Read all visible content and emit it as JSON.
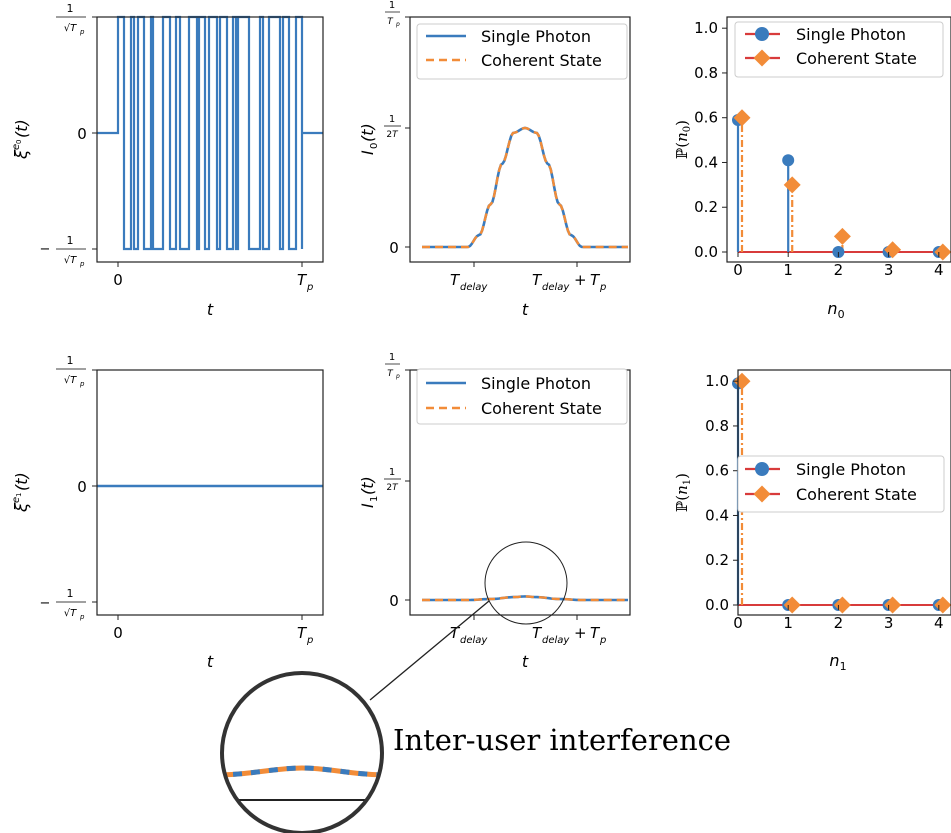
{
  "colors": {
    "blue": "#3a7bbd",
    "orange": "#f28c38",
    "red": "#d83b3b",
    "frame": "#222222"
  },
  "legend": {
    "single_photon": "Single Photon",
    "coherent_state": "Coherent State"
  },
  "annotation": {
    "text": "Inter-user interference"
  },
  "chart_data": [
    {
      "type": "line",
      "row": 0,
      "ylabel": "ξ^{e0}(t)",
      "xlabel": "t",
      "xticks": [
        "0",
        "T_p"
      ],
      "yticks": [
        "-1/√T_p",
        "0",
        "1/√T_p"
      ],
      "series": [
        {
          "description": "rapidly switching rectangular waveform between -1/√T_p and +1/√T_p over [0, T_p], zero outside",
          "levels": [
            -1,
            0,
            1
          ]
        }
      ]
    },
    {
      "type": "line",
      "row": 0,
      "ylabel": "I_0(t)",
      "xlabel": "t",
      "xticks": [
        "T_delay",
        "T_delay + T_p"
      ],
      "yticks": [
        "0",
        "1/2T",
        "1/T_p"
      ],
      "legend_position": "top-right",
      "series": [
        {
          "name": "Single Photon",
          "x": [
            -0.4,
            0.0,
            0.1,
            0.2,
            0.3,
            0.4,
            0.5,
            0.6,
            0.7,
            0.8,
            0.9,
            1.0,
            1.4
          ],
          "y": [
            0.0,
            0.0,
            0.05,
            0.18,
            0.35,
            0.48,
            0.5,
            0.48,
            0.35,
            0.18,
            0.05,
            0.0,
            0.0
          ]
        },
        {
          "name": "Coherent State",
          "x": [
            -0.4,
            0.0,
            0.1,
            0.2,
            0.3,
            0.4,
            0.5,
            0.6,
            0.7,
            0.8,
            0.9,
            1.0,
            1.4
          ],
          "y": [
            0.0,
            0.0,
            0.05,
            0.18,
            0.35,
            0.48,
            0.5,
            0.48,
            0.35,
            0.18,
            0.05,
            0.0,
            0.0
          ]
        }
      ]
    },
    {
      "type": "stem",
      "row": 0,
      "ylabel": "P(n_0)",
      "xlabel": "n_0",
      "ylim": [
        0,
        1.0
      ],
      "xticks": [
        "0",
        "1",
        "2",
        "3",
        "4"
      ],
      "yticks": [
        "0.0",
        "0.2",
        "0.4",
        "0.6",
        "0.8",
        "1.0"
      ],
      "legend_position": "top-right",
      "series": [
        {
          "name": "Single Photon",
          "x": [
            0,
            1,
            2,
            3,
            4
          ],
          "y": [
            0.59,
            0.41,
            0.0,
            0.0,
            0.0
          ]
        },
        {
          "name": "Coherent State",
          "x": [
            0,
            1,
            2,
            3,
            4
          ],
          "y": [
            0.6,
            0.3,
            0.07,
            0.01,
            0.0
          ]
        }
      ]
    },
    {
      "type": "line",
      "row": 1,
      "ylabel": "ξ^{e1}(t)",
      "xlabel": "t",
      "xticks": [
        "0",
        "T_p"
      ],
      "yticks": [
        "-1/√T_p",
        "0",
        "1/√T_p"
      ],
      "series": [
        {
          "x": [
            0,
            1
          ],
          "y": [
            0,
            0
          ]
        }
      ]
    },
    {
      "type": "line",
      "row": 1,
      "ylabel": "I_1(t)",
      "xlabel": "t",
      "xticks": [
        "T_delay",
        "T_delay + T_p"
      ],
      "yticks": [
        "0",
        "1/2T",
        "1/T_p"
      ],
      "legend_position": "top-right",
      "series": [
        {
          "name": "Single Photon",
          "x": [
            -0.4,
            0.0,
            0.2,
            0.4,
            0.5,
            0.6,
            0.8,
            1.0,
            1.4
          ],
          "y": [
            0.0,
            0.0,
            0.004,
            0.012,
            0.015,
            0.012,
            0.004,
            0.0,
            0.0
          ]
        },
        {
          "name": "Coherent State",
          "x": [
            -0.4,
            0.0,
            0.2,
            0.4,
            0.5,
            0.6,
            0.8,
            1.0,
            1.4
          ],
          "y": [
            0.0,
            0.0,
            0.004,
            0.012,
            0.015,
            0.012,
            0.004,
            0.0,
            0.0
          ]
        }
      ]
    },
    {
      "type": "stem",
      "row": 1,
      "ylabel": "P(n_1)",
      "xlabel": "n_1",
      "ylim": [
        0,
        1.0
      ],
      "xticks": [
        "0",
        "1",
        "2",
        "3",
        "4"
      ],
      "yticks": [
        "0.0",
        "0.2",
        "0.4",
        "0.6",
        "0.8",
        "1.0"
      ],
      "legend_position": "center-right",
      "series": [
        {
          "name": "Single Photon",
          "x": [
            0,
            1,
            2,
            3,
            4
          ],
          "y": [
            0.99,
            0.0,
            0.0,
            0.0,
            0.0
          ]
        },
        {
          "name": "Coherent State",
          "x": [
            0,
            1,
            2,
            3,
            4
          ],
          "y": [
            1.0,
            0.0,
            0.0,
            0.0,
            0.0
          ]
        }
      ]
    }
  ]
}
